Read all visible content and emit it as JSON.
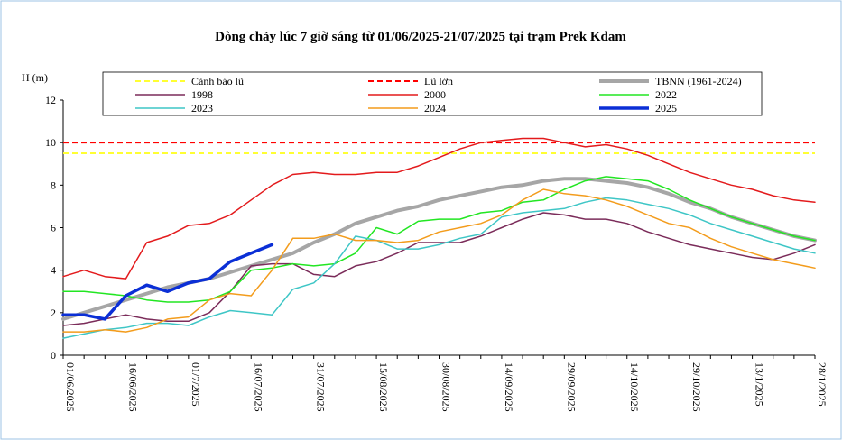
{
  "chart_data": {
    "type": "line",
    "title": "Dòng chảy lúc 7 giờ sáng từ 01/06/2025-21/07/2025 tại trạm Prek Kdam",
    "y_label": "H (m)",
    "categories": [
      "01/06/2025",
      null,
      null,
      "16/06/2025",
      null,
      null,
      "01/7/2025",
      null,
      null,
      "16/07/2025",
      null,
      null,
      "31/07/2025",
      null,
      null,
      "15/08/2025",
      null,
      null,
      "30/08/2025",
      null,
      null,
      "14/09/2025",
      null,
      null,
      "29/09/2025",
      null,
      null,
      "14/10/2025",
      null,
      null,
      "29/10/2025",
      null,
      null,
      "13/1/2025",
      null,
      null,
      "28/1/2025"
    ],
    "ylim": [
      0,
      12
    ],
    "yticks": [
      0,
      2,
      4,
      6,
      8,
      10,
      12
    ],
    "reference_lines": [
      {
        "name": "Cảnh báo lũ",
        "value": 9.5,
        "color": "#ffff33"
      },
      {
        "name": "Lũ lớn",
        "value": 10,
        "color": "#ff0000"
      }
    ],
    "series": [
      {
        "name": "TBNN (1961-2024)",
        "color": "#a6a6a6",
        "width": 4,
        "values": [
          1.7,
          2.0,
          2.3,
          2.6,
          2.9,
          3.2,
          3.4,
          3.6,
          3.9,
          4.2,
          4.5,
          4.8,
          5.3,
          5.7,
          6.2,
          6.5,
          6.8,
          7.0,
          7.3,
          7.5,
          7.7,
          7.9,
          8.0,
          8.2,
          8.3,
          8.3,
          8.2,
          8.1,
          7.9,
          7.6,
          7.2,
          6.9,
          6.5,
          6.2,
          5.9,
          5.6,
          5.4
        ]
      },
      {
        "name": "1998",
        "color": "#7b2c5a",
        "width": 1.5,
        "values": [
          1.4,
          1.5,
          1.7,
          1.9,
          1.7,
          1.6,
          1.6,
          2.0,
          3.0,
          4.2,
          4.3,
          4.3,
          3.8,
          3.7,
          4.2,
          4.4,
          4.8,
          5.3,
          5.3,
          5.3,
          5.6,
          6.0,
          6.4,
          6.7,
          6.6,
          6.4,
          6.4,
          6.2,
          5.8,
          5.5,
          5.2,
          5.0,
          4.8,
          4.6,
          4.5,
          4.8,
          5.2
        ]
      },
      {
        "name": "2000",
        "color": "#e31a1c",
        "width": 1.5,
        "values": [
          3.7,
          4.0,
          3.7,
          3.6,
          5.3,
          5.6,
          6.1,
          6.2,
          6.6,
          7.3,
          8.0,
          8.5,
          8.6,
          8.5,
          8.5,
          8.6,
          8.6,
          8.9,
          9.3,
          9.7,
          10.0,
          10.1,
          10.2,
          10.2,
          10.0,
          9.8,
          9.9,
          9.7,
          9.4,
          9.0,
          8.6,
          8.3,
          8.0,
          7.8,
          7.5,
          7.3,
          7.2
        ]
      },
      {
        "name": "2022",
        "color": "#22e622",
        "width": 1.5,
        "values": [
          3.0,
          3.0,
          2.9,
          2.8,
          2.6,
          2.5,
          2.5,
          2.6,
          3.0,
          4.0,
          4.1,
          4.3,
          4.2,
          4.3,
          4.8,
          6.0,
          5.7,
          6.3,
          6.4,
          6.4,
          6.7,
          6.8,
          7.2,
          7.3,
          7.8,
          8.2,
          8.4,
          8.3,
          8.2,
          7.8,
          7.3,
          6.9,
          6.5,
          6.2,
          5.9,
          5.6,
          5.4
        ]
      },
      {
        "name": "2023",
        "color": "#3ec6c6",
        "width": 1.5,
        "values": [
          0.8,
          1.0,
          1.2,
          1.3,
          1.5,
          1.5,
          1.4,
          1.8,
          2.1,
          2.0,
          1.9,
          3.1,
          3.4,
          4.3,
          5.6,
          5.4,
          5.0,
          5.0,
          5.2,
          5.5,
          5.7,
          6.5,
          6.7,
          6.8,
          6.9,
          7.2,
          7.4,
          7.3,
          7.1,
          6.9,
          6.6,
          6.2,
          5.9,
          5.6,
          5.3,
          5.0,
          4.8
        ]
      },
      {
        "name": "2024",
        "color": "#f39c1c",
        "width": 1.5,
        "values": [
          1.1,
          1.1,
          1.2,
          1.1,
          1.3,
          1.7,
          1.8,
          2.6,
          2.9,
          2.8,
          4.0,
          5.5,
          5.5,
          5.7,
          5.4,
          5.4,
          5.3,
          5.4,
          5.8,
          6.0,
          6.2,
          6.6,
          7.3,
          7.8,
          7.6,
          7.5,
          7.3,
          7.0,
          6.6,
          6.2,
          6.0,
          5.5,
          5.1,
          4.8,
          4.5,
          4.3,
          4.1
        ]
      },
      {
        "name": "2025",
        "color": "#0b2fd6",
        "width": 3.5,
        "values": [
          1.9,
          1.9,
          1.7,
          2.8,
          3.3,
          3.0,
          3.4,
          3.6,
          4.4,
          4.8,
          5.2,
          null,
          null,
          null,
          null,
          null,
          null,
          null,
          null,
          null,
          null,
          null,
          null,
          null,
          null,
          null,
          null,
          null,
          null,
          null,
          null,
          null,
          null,
          null,
          null,
          null,
          null
        ]
      }
    ]
  }
}
